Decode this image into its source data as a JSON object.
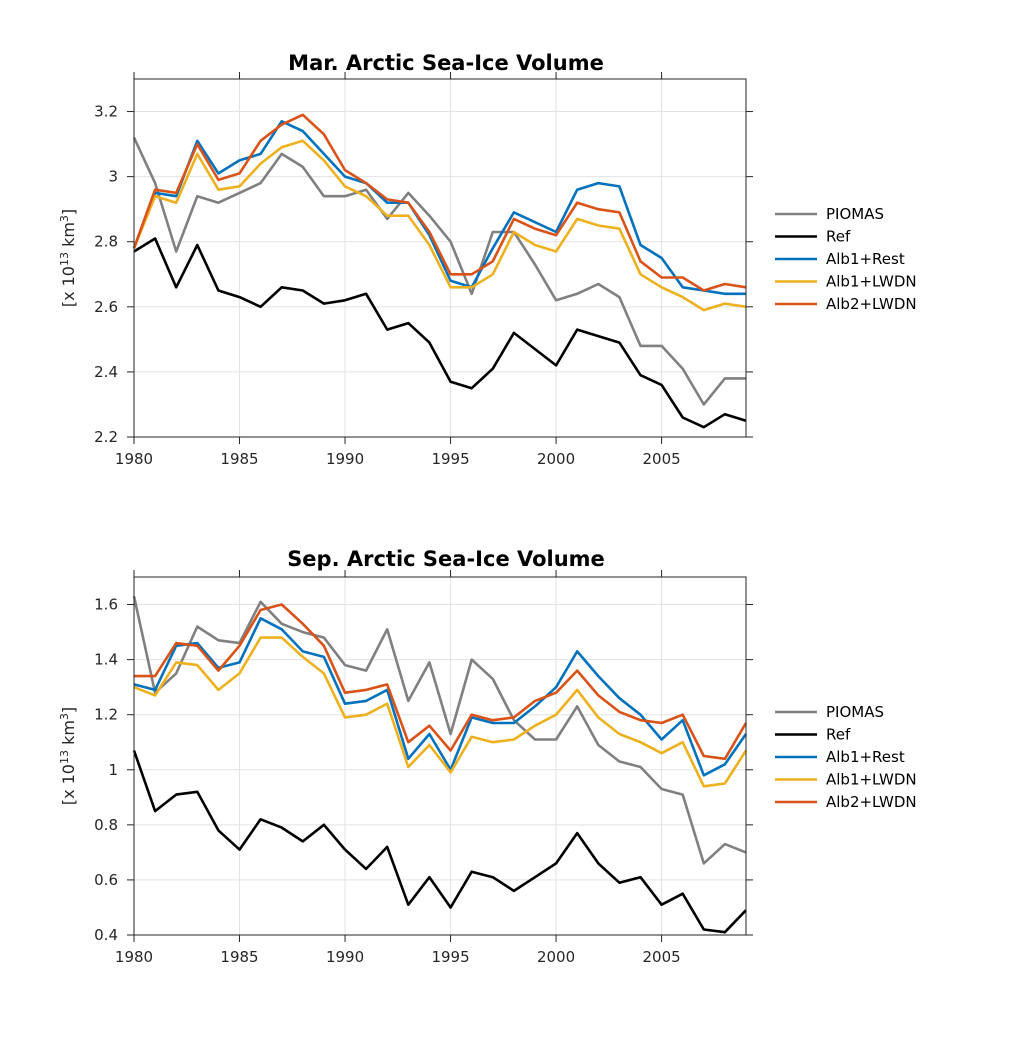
{
  "chart_data": [
    {
      "type": "line",
      "title": "Mar. Arctic Sea-Ice Volume",
      "xlabel": "",
      "ylabel": "[x 10^13 km^3]",
      "xlim": [
        1980,
        2009
      ],
      "ylim": [
        2.2,
        3.3
      ],
      "xticks": [
        "1980",
        "1985",
        "1990",
        "1995",
        "2000",
        "2005"
      ],
      "yticks": [
        "2.2",
        "2.4",
        "2.6",
        "2.8",
        "3",
        "3.2"
      ],
      "grid": true,
      "legend_position": "right",
      "x": [
        1980,
        1981,
        1982,
        1983,
        1984,
        1985,
        1986,
        1987,
        1988,
        1989,
        1990,
        1991,
        1992,
        1993,
        1994,
        1995,
        1996,
        1997,
        1998,
        1999,
        2000,
        2001,
        2002,
        2003,
        2004,
        2005,
        2006,
        2007,
        2008,
        2009
      ],
      "series": [
        {
          "name": "PIOMAS",
          "color": "#808080",
          "values": [
            3.12,
            2.98,
            2.77,
            2.94,
            2.92,
            2.95,
            2.98,
            3.07,
            3.03,
            2.94,
            2.94,
            2.96,
            2.87,
            2.95,
            2.88,
            2.8,
            2.64,
            2.83,
            2.83,
            2.73,
            2.62,
            2.64,
            2.67,
            2.63,
            2.48,
            2.48,
            2.41,
            2.3,
            2.38,
            2.38
          ]
        },
        {
          "name": "Ref",
          "color": "#000000",
          "values": [
            2.77,
            2.81,
            2.66,
            2.79,
            2.65,
            2.63,
            2.6,
            2.66,
            2.65,
            2.61,
            2.62,
            2.64,
            2.53,
            2.55,
            2.49,
            2.37,
            2.35,
            2.41,
            2.52,
            2.47,
            2.42,
            2.53,
            2.51,
            2.49,
            2.39,
            2.36,
            2.26,
            2.23,
            2.27,
            2.25
          ]
        },
        {
          "name": "Alb1+Rest",
          "color": "#0072BD",
          "values": [
            2.78,
            2.95,
            2.94,
            3.11,
            3.01,
            3.05,
            3.07,
            3.17,
            3.14,
            3.07,
            3.0,
            2.98,
            2.92,
            2.92,
            2.82,
            2.68,
            2.66,
            2.78,
            2.89,
            2.86,
            2.83,
            2.96,
            2.98,
            2.97,
            2.79,
            2.75,
            2.66,
            2.65,
            2.64,
            2.64
          ]
        },
        {
          "name": "Alb1+LWDN",
          "color": "#EDB120",
          "values": [
            2.78,
            2.94,
            2.92,
            3.07,
            2.96,
            2.97,
            3.04,
            3.09,
            3.11,
            3.05,
            2.97,
            2.94,
            2.88,
            2.88,
            2.79,
            2.66,
            2.66,
            2.7,
            2.83,
            2.79,
            2.77,
            2.87,
            2.85,
            2.84,
            2.7,
            2.66,
            2.63,
            2.59,
            2.61,
            2.6
          ]
        },
        {
          "name": "Alb2+LWDN",
          "color": "#D95319",
          "values": [
            2.78,
            2.96,
            2.95,
            3.1,
            2.99,
            3.01,
            3.11,
            3.16,
            3.19,
            3.13,
            3.02,
            2.98,
            2.93,
            2.92,
            2.83,
            2.7,
            2.7,
            2.74,
            2.87,
            2.84,
            2.82,
            2.92,
            2.9,
            2.89,
            2.74,
            2.69,
            2.69,
            2.65,
            2.67,
            2.66
          ]
        }
      ]
    },
    {
      "type": "line",
      "title": "Sep. Arctic Sea-Ice Volume",
      "xlabel": "",
      "ylabel": "[x 10^13 km^3]",
      "xlim": [
        1980,
        2009
      ],
      "ylim": [
        0.4,
        1.7
      ],
      "xticks": [
        "1980",
        "1985",
        "1990",
        "1995",
        "2000",
        "2005"
      ],
      "yticks": [
        "0.4",
        "0.6",
        "0.8",
        "1",
        "1.2",
        "1.4",
        "1.6"
      ],
      "grid": true,
      "legend_position": "right",
      "x": [
        1980,
        1981,
        1982,
        1983,
        1984,
        1985,
        1986,
        1987,
        1988,
        1989,
        1990,
        1991,
        1992,
        1993,
        1994,
        1995,
        1996,
        1997,
        1998,
        1999,
        2000,
        2001,
        2002,
        2003,
        2004,
        2005,
        2006,
        2007,
        2008,
        2009
      ],
      "series": [
        {
          "name": "PIOMAS",
          "color": "#808080",
          "values": [
            1.63,
            1.28,
            1.35,
            1.52,
            1.47,
            1.46,
            1.61,
            1.53,
            1.5,
            1.48,
            1.38,
            1.36,
            1.51,
            1.25,
            1.39,
            1.13,
            1.4,
            1.33,
            1.18,
            1.11,
            1.11,
            1.23,
            1.09,
            1.03,
            1.01,
            0.93,
            0.91,
            0.66,
            0.73,
            0.7
          ]
        },
        {
          "name": "Ref",
          "color": "#000000",
          "values": [
            1.07,
            0.85,
            0.91,
            0.92,
            0.78,
            0.71,
            0.82,
            0.79,
            0.74,
            0.8,
            0.71,
            0.64,
            0.72,
            0.51,
            0.61,
            0.5,
            0.63,
            0.61,
            0.56,
            0.61,
            0.66,
            0.77,
            0.66,
            0.59,
            0.61,
            0.51,
            0.55,
            0.42,
            0.41,
            0.49
          ]
        },
        {
          "name": "Alb1+Rest",
          "color": "#0072BD",
          "values": [
            1.31,
            1.29,
            1.45,
            1.46,
            1.37,
            1.39,
            1.55,
            1.51,
            1.43,
            1.41,
            1.24,
            1.25,
            1.29,
            1.04,
            1.13,
            1.0,
            1.19,
            1.17,
            1.17,
            1.23,
            1.3,
            1.43,
            1.34,
            1.26,
            1.2,
            1.11,
            1.18,
            0.98,
            1.02,
            1.13
          ]
        },
        {
          "name": "Alb1+LWDN",
          "color": "#EDB120",
          "values": [
            1.3,
            1.27,
            1.39,
            1.38,
            1.29,
            1.35,
            1.48,
            1.48,
            1.41,
            1.35,
            1.19,
            1.2,
            1.24,
            1.01,
            1.09,
            0.99,
            1.12,
            1.1,
            1.11,
            1.16,
            1.2,
            1.29,
            1.19,
            1.13,
            1.1,
            1.06,
            1.1,
            0.94,
            0.95,
            1.07
          ]
        },
        {
          "name": "Alb2+LWDN",
          "color": "#D95319",
          "values": [
            1.34,
            1.34,
            1.46,
            1.45,
            1.36,
            1.45,
            1.58,
            1.6,
            1.53,
            1.45,
            1.28,
            1.29,
            1.31,
            1.1,
            1.16,
            1.07,
            1.2,
            1.18,
            1.19,
            1.25,
            1.28,
            1.36,
            1.27,
            1.21,
            1.18,
            1.17,
            1.2,
            1.05,
            1.04,
            1.17
          ]
        }
      ]
    }
  ]
}
